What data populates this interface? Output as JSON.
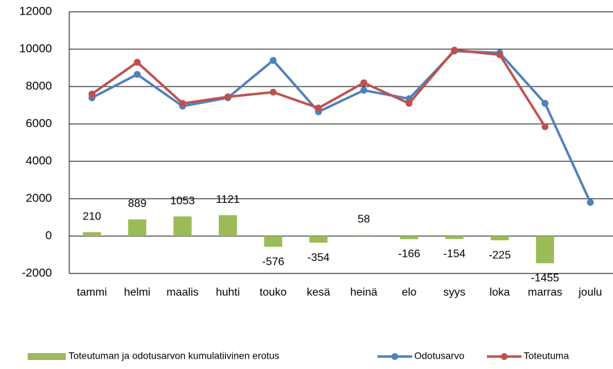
{
  "chart_data": {
    "type": "bar",
    "categories": [
      "tammi",
      "helmi",
      "maalis",
      "huhti",
      "touko",
      "kesä",
      "heinä",
      "elo",
      "syys",
      "loka",
      "marras",
      "joulu"
    ],
    "series": [
      {
        "name": "Toteutuman ja odotusarvon kumulatiivinen erotus",
        "type": "bar",
        "color": "#9bbb59",
        "values": [
          210,
          889,
          1053,
          1121,
          -576,
          -354,
          58,
          -166,
          -154,
          -225,
          -1455,
          null
        ]
      },
      {
        "name": "Odotusarvo",
        "type": "line",
        "color": "#4f81bd",
        "values": [
          7400,
          8650,
          6950,
          7400,
          9400,
          6650,
          7800,
          7350,
          9900,
          9800,
          7100,
          1800
        ]
      },
      {
        "name": "Toteutuma",
        "type": "line",
        "color": "#c0504d",
        "values": [
          7600,
          9300,
          7100,
          7450,
          7700,
          6850,
          8200,
          7100,
          9950,
          9700,
          5850,
          null
        ]
      }
    ],
    "ylim": [
      -2000,
      12000
    ],
    "yticks": [
      -2000,
      0,
      2000,
      4000,
      6000,
      8000,
      10000,
      12000
    ],
    "grid": true,
    "legend": "bottom"
  }
}
